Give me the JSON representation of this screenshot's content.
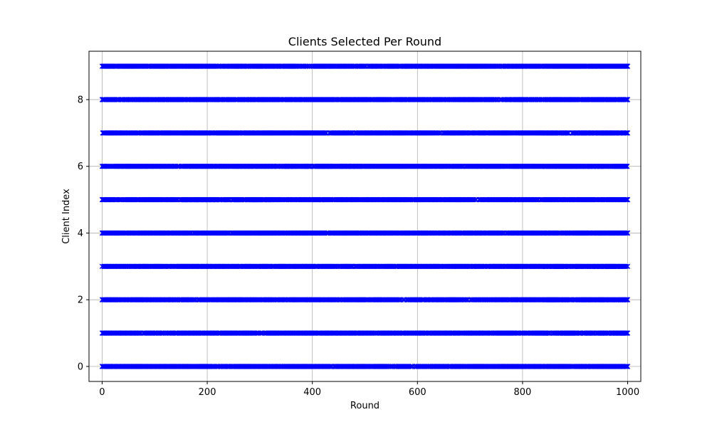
{
  "chart_data": {
    "type": "scatter",
    "title": "Clients Selected Per Round",
    "xlabel": "Round",
    "ylabel": "Client Index",
    "xlim": [
      -25,
      1025
    ],
    "ylim": [
      -0.45,
      9.45
    ],
    "xticks": [
      0,
      200,
      400,
      600,
      800,
      1000
    ],
    "yticks": [
      0,
      2,
      4,
      6,
      8
    ],
    "grid": true,
    "marker": "x",
    "marker_color": "#0000ff",
    "rounds": [
      0,
      1000
    ],
    "clients": [
      0,
      1,
      2,
      3,
      4,
      5,
      6,
      7,
      8,
      9
    ],
    "selection_density": 0.85
  }
}
